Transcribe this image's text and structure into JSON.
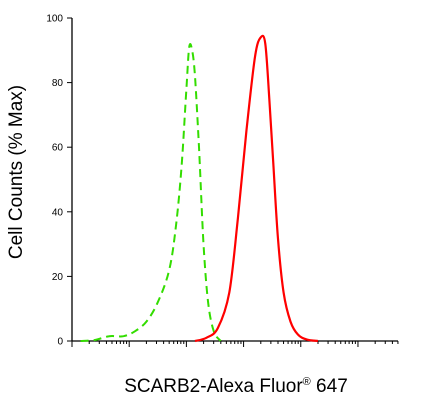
{
  "chart_data": {
    "type": "line",
    "title": "",
    "xlabel": "SCARB2-Alexa Fluor",
    "xlabel_superscript": "®",
    "xlabel_suffix": " 647",
    "ylabel": "Cell Counts (% Max)",
    "x_scale": "log",
    "xlim": [
      -1,
      4.7
    ],
    "ylim": [
      0,
      100
    ],
    "yticks": [
      0,
      20,
      40,
      60,
      80,
      100
    ],
    "ytick_labels": [
      "0",
      "20",
      "40",
      "60",
      "80",
      "100"
    ],
    "grid": false,
    "legend": "none",
    "series": [
      {
        "color": "#33dd00",
        "dash": "dashed",
        "x": [
          -0.85,
          -0.6,
          -0.35,
          -0.1,
          0.1,
          0.3,
          0.5,
          0.7,
          0.82,
          0.92,
          1.0,
          1.05,
          1.1,
          1.15,
          1.22,
          1.3,
          1.38,
          1.48,
          1.6
        ],
        "y": [
          0,
          0.3,
          1.5,
          1.5,
          3,
          6,
          12,
          22,
          36,
          55,
          78,
          91,
          90,
          82,
          60,
          30,
          12,
          3,
          0
        ]
      },
      {
        "color": "#ff0000",
        "dash": "solid",
        "x": [
          1.15,
          1.35,
          1.55,
          1.75,
          1.9,
          2.05,
          2.2,
          2.3,
          2.38,
          2.45,
          2.52,
          2.6,
          2.7,
          2.82,
          2.95,
          3.1,
          3.3
        ],
        "y": [
          0,
          1,
          4,
          15,
          38,
          65,
          88,
          94,
          92,
          75,
          55,
          32,
          15,
          6,
          2,
          0.5,
          0
        ]
      }
    ]
  }
}
